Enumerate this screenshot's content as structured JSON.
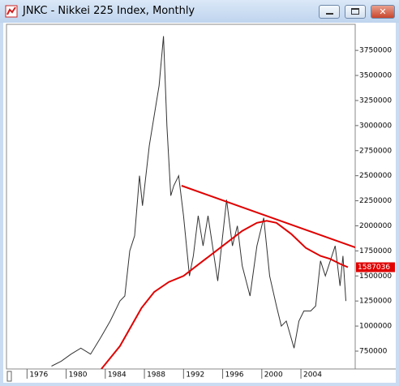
{
  "chart_data": {
    "type": "line",
    "title": "JNKC - Nikkei 225 Index, Monthly",
    "xlim": [
      1973.9,
      2009.55
    ],
    "xticks": [
      1976,
      1980,
      1984,
      1988,
      1992,
      1996,
      2000,
      2004
    ],
    "ylim": [
      572000,
      4010000
    ],
    "yticks": [
      750000,
      1000000,
      1250000,
      1500000,
      1750000,
      2000000,
      2250000,
      2500000,
      2750000,
      3000000,
      3250000,
      3500000,
      3750000
    ],
    "grid": false,
    "log_scale": false,
    "series": [
      {
        "color": "#333333",
        "x": [
          1978.5,
          1979.5,
          1980.5,
          1981.5,
          1982.5,
          1983.5,
          1984.5,
          1985.5,
          1986.0,
          1986.5,
          1987.0,
          1987.5,
          1987.8,
          1988.5,
          1989.5,
          1989.95,
          1990.3,
          1990.7,
          1991.0,
          1991.5,
          1992.0,
          1992.6,
          1993.0,
          1993.5,
          1994.0,
          1994.5,
          1995.5,
          1996.4,
          1997.0,
          1997.5,
          1998.0,
          1998.8,
          1999.5,
          2000.2,
          2000.8,
          2001.5,
          2002.0,
          2002.5,
          2003.3,
          2003.8,
          2004.3,
          2005.0,
          2005.5,
          2006.0,
          2006.5,
          2007.5,
          2008.0,
          2008.3,
          2008.6
        ],
        "values": [
          600000,
          650000,
          720000,
          780000,
          720000,
          880000,
          1050000,
          1250000,
          1300000,
          1750000,
          1900000,
          2500000,
          2200000,
          2800000,
          3400000,
          3891500,
          3000000,
          2300000,
          2400000,
          2500000,
          2100000,
          1500000,
          1700000,
          2100000,
          1800000,
          2100000,
          1450000,
          2260000,
          1800000,
          2000000,
          1600000,
          1300000,
          1800000,
          2080000,
          1500000,
          1200000,
          1000000,
          1050000,
          780000,
          1050000,
          1150000,
          1150000,
          1200000,
          1650000,
          1500000,
          1800000,
          1400000,
          1700000,
          1250000
        ]
      },
      {
        "color": "#e00000",
        "x": [
          1983.6,
          1985.5,
          1987.7,
          1989.0,
          1990.5,
          1992.0,
          1994.0,
          1996.0,
          1998.0,
          1999.5,
          2000.5,
          2001.5,
          2003.0,
          2004.5,
          2006.0,
          2007.0,
          2008.0,
          2008.8
        ],
        "values": [
          572000,
          800000,
          1180000,
          1340000,
          1440000,
          1500000,
          1650000,
          1800000,
          1950000,
          2030000,
          2050000,
          2030000,
          1920000,
          1780000,
          1700000,
          1670000,
          1620000,
          1587036
        ]
      },
      {
        "color": "#e00000",
        "x": [
          1991.8,
          2009.55
        ],
        "values": [
          2400000,
          1785000
        ]
      }
    ]
  }
}
